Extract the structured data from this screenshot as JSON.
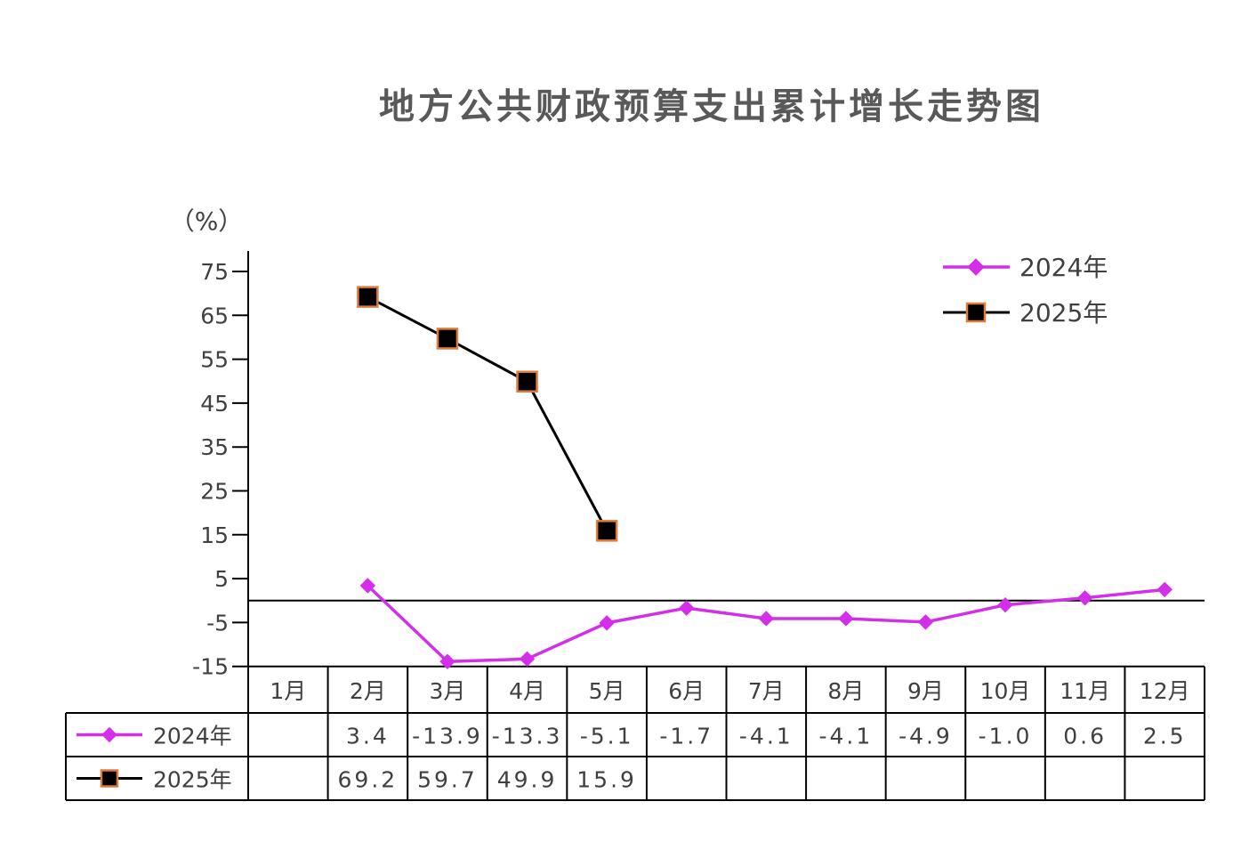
{
  "colors": {
    "series_2024": "#D42FE8",
    "series_2025_line": "#000000",
    "series_2025_marker_fill": "#000000",
    "series_2025_marker_stroke": "#E07B39",
    "axis": "#000000",
    "text": "#404040",
    "title": "#595959"
  },
  "chart_data": {
    "type": "line",
    "title": "地方公共财政预算支出累计增长走势图",
    "ylabel": "（%）",
    "ylim": [
      -15,
      80
    ],
    "yticks": [
      75,
      65,
      55,
      45,
      35,
      25,
      15,
      5,
      -5,
      -15
    ],
    "categories": [
      "1月",
      "2月",
      "3月",
      "4月",
      "5月",
      "6月",
      "7月",
      "8月",
      "9月",
      "10月",
      "11月",
      "12月"
    ],
    "legend_position": "top-right",
    "series": [
      {
        "name": "2024年",
        "marker": "diamond",
        "values": [
          null,
          3.4,
          -13.9,
          -13.3,
          -5.1,
          -1.7,
          -4.1,
          -4.1,
          -4.9,
          -1.0,
          0.6,
          2.5
        ],
        "labels": [
          "",
          "3.4",
          "-13.9",
          "-13.3",
          "-5.1",
          "-1.7",
          "-4.1",
          "-4.1",
          "-4.9",
          "-1.0",
          "0.6",
          "2.5"
        ]
      },
      {
        "name": "2025年",
        "marker": "square",
        "values": [
          null,
          69.2,
          59.7,
          49.9,
          15.9,
          null,
          null,
          null,
          null,
          null,
          null,
          null
        ],
        "labels": [
          "",
          "69.2",
          "59.7",
          "49.9",
          "15.9",
          "",
          "",
          "",
          "",
          "",
          "",
          ""
        ]
      }
    ]
  }
}
